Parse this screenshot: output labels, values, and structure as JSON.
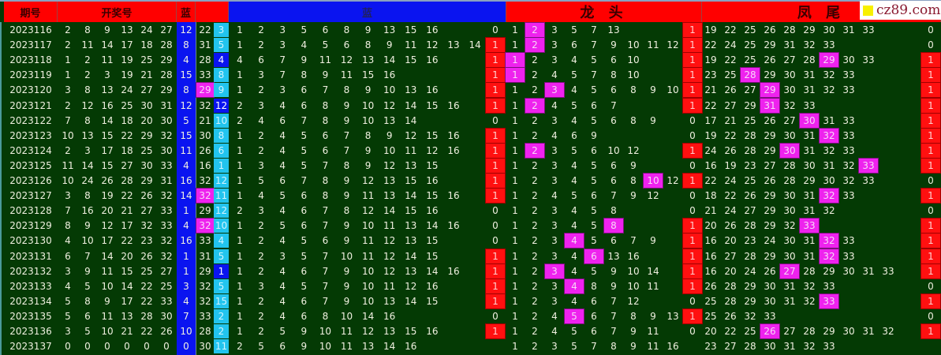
{
  "header": {
    "issue": "期号",
    "draw": "开奖号",
    "blue": "蓝",
    "blue_section": "蓝",
    "head_section": "龙 头",
    "tail_section": "凤 尾",
    "logo_text": "cz89.com"
  },
  "colors": {
    "header_red": "#ff0000",
    "blue": "#0a14f0",
    "light_blue": "#22c4ee",
    "highlight": "#ee22ee",
    "flag": "#ff1010",
    "background": "#043a04"
  },
  "rows": [
    {
      "issue": "2023116",
      "draw": [
        2,
        8,
        9,
        13,
        24,
        27
      ],
      "blue": 12,
      "c1": 22,
      "c1_hl": false,
      "c2": 3,
      "c2_style": "light",
      "blue_set": [
        1,
        2,
        3,
        5,
        6,
        8,
        9,
        13,
        15,
        16
      ],
      "blue_flag": 0,
      "head": [
        1,
        2,
        3,
        5,
        7,
        13
      ],
      "head_hl": 2,
      "head_flag": 1,
      "tail": [
        19,
        22,
        25,
        26,
        28,
        29,
        30,
        31,
        33
      ],
      "tail_hl": null,
      "tail_flag": 0
    },
    {
      "issue": "2023117",
      "draw": [
        2,
        11,
        14,
        17,
        18,
        28
      ],
      "blue": 8,
      "c1": 31,
      "c1_hl": false,
      "c2": 5,
      "c2_style": "light",
      "blue_set": [
        1,
        2,
        3,
        4,
        5,
        6,
        8,
        9,
        11,
        12,
        13,
        14
      ],
      "blue_flag": 1,
      "head": [
        1,
        2,
        3,
        6,
        7,
        9,
        10,
        11,
        12
      ],
      "head_hl": 2,
      "head_flag": 1,
      "tail": [
        22,
        24,
        25,
        29,
        31,
        32,
        33
      ],
      "tail_hl": null,
      "tail_flag": 0
    },
    {
      "issue": "2023118",
      "draw": [
        1,
        2,
        11,
        19,
        25,
        29
      ],
      "blue": 4,
      "c1": 28,
      "c1_hl": false,
      "c2": 4,
      "c2_style": "dark",
      "blue_set": [
        4,
        6,
        7,
        9,
        11,
        12,
        13,
        14,
        15,
        16
      ],
      "blue_flag": 1,
      "head": [
        1,
        2,
        3,
        4,
        5,
        6,
        10
      ],
      "head_hl": 1,
      "head_flag": 1,
      "tail": [
        19,
        22,
        25,
        26,
        27,
        28,
        29,
        30,
        33
      ],
      "tail_hl": 29,
      "tail_flag": 1
    },
    {
      "issue": "2023119",
      "draw": [
        1,
        2,
        3,
        19,
        21,
        28
      ],
      "blue": 15,
      "c1": 33,
      "c1_hl": false,
      "c2": 8,
      "c2_style": "light",
      "blue_set": [
        1,
        3,
        7,
        8,
        9,
        11,
        15,
        16
      ],
      "blue_flag": 1,
      "head": [
        1,
        2,
        4,
        5,
        7,
        8,
        10
      ],
      "head_hl": 1,
      "head_flag": 1,
      "tail": [
        23,
        25,
        28,
        29,
        30,
        31,
        32,
        33
      ],
      "tail_hl": 28,
      "tail_flag": 1
    },
    {
      "issue": "2023120",
      "draw": [
        3,
        8,
        13,
        24,
        27,
        29
      ],
      "blue": 8,
      "c1": 29,
      "c1_hl": true,
      "c2": 9,
      "c2_style": "light",
      "blue_set": [
        1,
        2,
        3,
        6,
        7,
        8,
        9,
        10,
        13,
        16
      ],
      "blue_flag": 1,
      "head": [
        1,
        2,
        3,
        4,
        5,
        6,
        8,
        9,
        10
      ],
      "head_hl": 3,
      "head_flag": 1,
      "tail": [
        21,
        26,
        27,
        29,
        30,
        31,
        32,
        33
      ],
      "tail_hl": 29,
      "tail_flag": 1
    },
    {
      "issue": "2023121",
      "draw": [
        2,
        12,
        16,
        25,
        30,
        31
      ],
      "blue": 12,
      "c1": 32,
      "c1_hl": false,
      "c2": 12,
      "c2_style": "dark",
      "blue_set": [
        2,
        3,
        4,
        6,
        8,
        9,
        10,
        12,
        14,
        15,
        16
      ],
      "blue_flag": 1,
      "head": [
        1,
        2,
        4,
        5,
        6,
        7
      ],
      "head_hl": 2,
      "head_flag": 1,
      "tail": [
        22,
        27,
        29,
        31,
        32,
        33
      ],
      "tail_hl": 31,
      "tail_flag": 1
    },
    {
      "issue": "2023122",
      "draw": [
        7,
        8,
        14,
        18,
        20,
        30
      ],
      "blue": 5,
      "c1": 21,
      "c1_hl": false,
      "c2": 10,
      "c2_style": "light",
      "blue_set": [
        2,
        4,
        6,
        7,
        8,
        9,
        10,
        13,
        14
      ],
      "blue_flag": 0,
      "head": [
        1,
        2,
        3,
        4,
        5,
        6,
        8,
        9
      ],
      "head_hl": null,
      "head_flag": 0,
      "tail": [
        17,
        21,
        25,
        26,
        27,
        30,
        31,
        33
      ],
      "tail_hl": 30,
      "tail_flag": 1
    },
    {
      "issue": "2023123",
      "draw": [
        10,
        13,
        15,
        22,
        29,
        32
      ],
      "blue": 15,
      "c1": 30,
      "c1_hl": false,
      "c2": 8,
      "c2_style": "light",
      "blue_set": [
        1,
        2,
        4,
        5,
        6,
        7,
        8,
        9,
        12,
        15,
        16
      ],
      "blue_flag": 1,
      "head": [
        1,
        2,
        4,
        6,
        9
      ],
      "head_hl": null,
      "head_flag": 0,
      "tail": [
        19,
        22,
        28,
        29,
        30,
        31,
        32,
        33
      ],
      "tail_hl": 32,
      "tail_flag": 1
    },
    {
      "issue": "2023124",
      "draw": [
        2,
        3,
        17,
        18,
        25,
        30
      ],
      "blue": 11,
      "c1": 26,
      "c1_hl": false,
      "c2": 6,
      "c2_style": "light",
      "blue_set": [
        1,
        2,
        4,
        5,
        6,
        7,
        9,
        10,
        11,
        12,
        16
      ],
      "blue_flag": 1,
      "head": [
        1,
        2,
        3,
        5,
        6,
        10,
        12
      ],
      "head_hl": 2,
      "head_flag": 1,
      "tail": [
        24,
        26,
        28,
        29,
        30,
        31,
        32,
        33
      ],
      "tail_hl": 30,
      "tail_flag": 1
    },
    {
      "issue": "2023125",
      "draw": [
        11,
        14,
        15,
        27,
        30,
        33
      ],
      "blue": 4,
      "c1": 16,
      "c1_hl": false,
      "c2": 1,
      "c2_style": "light",
      "blue_set": [
        1,
        3,
        4,
        5,
        7,
        8,
        9,
        12,
        13,
        15
      ],
      "blue_flag": 1,
      "head": [
        1,
        2,
        3,
        4,
        5,
        6,
        9
      ],
      "head_hl": null,
      "head_flag": 0,
      "tail": [
        16,
        19,
        23,
        27,
        28,
        30,
        31,
        32,
        33
      ],
      "tail_hl": 33,
      "tail_flag": 1
    },
    {
      "issue": "2023126",
      "draw": [
        10,
        24,
        26,
        28,
        29,
        31
      ],
      "blue": 16,
      "c1": 32,
      "c1_hl": false,
      "c2": 12,
      "c2_style": "light",
      "blue_set": [
        1,
        5,
        6,
        7,
        8,
        9,
        12,
        13,
        15,
        16
      ],
      "blue_flag": 1,
      "head": [
        1,
        2,
        3,
        4,
        5,
        6,
        8,
        10,
        12
      ],
      "head_hl": 10,
      "head_flag": 1,
      "tail": [
        22,
        24,
        25,
        26,
        28,
        29,
        30,
        32,
        33
      ],
      "tail_hl": null,
      "tail_flag": 0
    },
    {
      "issue": "2023127",
      "draw": [
        3,
        8,
        19,
        22,
        26,
        32
      ],
      "blue": 14,
      "c1": 32,
      "c1_hl": true,
      "c2": 11,
      "c2_style": "light",
      "blue_set": [
        1,
        4,
        5,
        6,
        8,
        9,
        11,
        13,
        14,
        15,
        16
      ],
      "blue_flag": 1,
      "head": [
        1,
        2,
        4,
        5,
        6,
        7,
        9,
        12
      ],
      "head_hl": null,
      "head_flag": 0,
      "tail": [
        18,
        22,
        26,
        29,
        30,
        31,
        32,
        33
      ],
      "tail_hl": 32,
      "tail_flag": 1
    },
    {
      "issue": "2023128",
      "draw": [
        7,
        16,
        20,
        21,
        27,
        33
      ],
      "blue": 1,
      "c1": 29,
      "c1_hl": false,
      "c2": 12,
      "c2_style": "light",
      "blue_set": [
        2,
        3,
        4,
        6,
        7,
        8,
        12,
        14,
        15,
        16
      ],
      "blue_flag": 0,
      "head": [
        1,
        2,
        3,
        4,
        5,
        8
      ],
      "head_hl": null,
      "head_flag": 0,
      "tail": [
        21,
        24,
        27,
        29,
        30,
        31,
        32
      ],
      "tail_hl": null,
      "tail_flag": 0
    },
    {
      "issue": "2023129",
      "draw": [
        8,
        9,
        12,
        17,
        32,
        33
      ],
      "blue": 4,
      "c1": 32,
      "c1_hl": true,
      "c2": 10,
      "c2_style": "light",
      "blue_set": [
        1,
        2,
        5,
        6,
        7,
        9,
        10,
        11,
        13,
        14,
        16
      ],
      "blue_flag": 0,
      "head": [
        1,
        2,
        3,
        4,
        5,
        8
      ],
      "head_hl": 8,
      "head_flag": 1,
      "tail": [
        20,
        26,
        28,
        29,
        32,
        33
      ],
      "tail_hl": 33,
      "tail_flag": 1
    },
    {
      "issue": "2023130",
      "draw": [
        4,
        10,
        17,
        22,
        23,
        32
      ],
      "blue": 16,
      "c1": 33,
      "c1_hl": false,
      "c2": 4,
      "c2_style": "light",
      "blue_set": [
        1,
        2,
        4,
        5,
        6,
        9,
        11,
        12,
        13,
        15
      ],
      "blue_flag": 0,
      "head": [
        1,
        2,
        3,
        4,
        5,
        6,
        7,
        9
      ],
      "head_hl": 4,
      "head_flag": 1,
      "tail": [
        16,
        20,
        23,
        24,
        30,
        31,
        32,
        33
      ],
      "tail_hl": 32,
      "tail_flag": 1
    },
    {
      "issue": "2023131",
      "draw": [
        6,
        7,
        14,
        20,
        26,
        32
      ],
      "blue": 1,
      "c1": 31,
      "c1_hl": false,
      "c2": 5,
      "c2_style": "light",
      "blue_set": [
        1,
        2,
        3,
        5,
        7,
        10,
        11,
        12,
        14,
        15
      ],
      "blue_flag": 1,
      "head": [
        1,
        2,
        3,
        4,
        6,
        13,
        16
      ],
      "head_hl": 6,
      "head_flag": 1,
      "tail": [
        16,
        27,
        28,
        29,
        30,
        31,
        32,
        33
      ],
      "tail_hl": 32,
      "tail_flag": 1
    },
    {
      "issue": "2023132",
      "draw": [
        3,
        9,
        11,
        15,
        25,
        27
      ],
      "blue": 1,
      "c1": 29,
      "c1_hl": false,
      "c2": 1,
      "c2_style": "dark",
      "blue_set": [
        1,
        2,
        4,
        6,
        7,
        9,
        10,
        12,
        13,
        14,
        16
      ],
      "blue_flag": 1,
      "head": [
        1,
        2,
        3,
        4,
        5,
        9,
        10,
        14
      ],
      "head_hl": 3,
      "head_flag": 1,
      "tail": [
        16,
        20,
        24,
        26,
        27,
        28,
        29,
        30,
        31,
        33
      ],
      "tail_hl": 27,
      "tail_flag": 1
    },
    {
      "issue": "2023133",
      "draw": [
        4,
        5,
        10,
        14,
        22,
        25
      ],
      "blue": 3,
      "c1": 32,
      "c1_hl": false,
      "c2": 5,
      "c2_style": "light",
      "blue_set": [
        1,
        3,
        4,
        5,
        7,
        9,
        10,
        11,
        12,
        16
      ],
      "blue_flag": 1,
      "head": [
        1,
        2,
        3,
        4,
        8,
        9,
        10,
        11
      ],
      "head_hl": 4,
      "head_flag": 1,
      "tail": [
        26,
        28,
        29,
        30,
        31,
        32,
        33
      ],
      "tail_hl": null,
      "tail_flag": 0
    },
    {
      "issue": "2023134",
      "draw": [
        5,
        8,
        9,
        17,
        22,
        33
      ],
      "blue": 4,
      "c1": 32,
      "c1_hl": false,
      "c2": 15,
      "c2_style": "light",
      "blue_set": [
        1,
        2,
        4,
        6,
        7,
        9,
        10,
        13,
        14,
        15
      ],
      "blue_flag": 1,
      "head": [
        1,
        2,
        3,
        4,
        6,
        7,
        12
      ],
      "head_hl": null,
      "head_flag": 0,
      "tail": [
        25,
        28,
        29,
        30,
        31,
        32,
        33
      ],
      "tail_hl": 33,
      "tail_flag": 1
    },
    {
      "issue": "2023135",
      "draw": [
        5,
        6,
        11,
        13,
        28,
        30
      ],
      "blue": 7,
      "c1": 33,
      "c1_hl": false,
      "c2": 2,
      "c2_style": "light",
      "blue_set": [
        1,
        2,
        4,
        6,
        8,
        10,
        14,
        16
      ],
      "blue_flag": 0,
      "head": [
        1,
        2,
        4,
        5,
        6,
        7,
        8,
        9,
        13
      ],
      "head_hl": 5,
      "head_flag": 1,
      "tail": [
        25,
        26,
        32,
        33
      ],
      "tail_hl": null,
      "tail_flag": 0
    },
    {
      "issue": "2023136",
      "draw": [
        3,
        5,
        10,
        21,
        22,
        26
      ],
      "blue": 10,
      "c1": 28,
      "c1_hl": false,
      "c2": 2,
      "c2_style": "light",
      "blue_set": [
        1,
        2,
        5,
        9,
        10,
        11,
        12,
        13,
        15,
        16
      ],
      "blue_flag": 1,
      "head": [
        1,
        2,
        4,
        5,
        6,
        7,
        9,
        11
      ],
      "head_hl": null,
      "head_flag": 0,
      "tail": [
        20,
        22,
        25,
        26,
        27,
        28,
        29,
        30,
        31,
        32
      ],
      "tail_hl": 26,
      "tail_flag": 1
    },
    {
      "issue": "2023137",
      "draw": [
        0,
        0,
        0,
        0,
        0,
        0
      ],
      "blue": 0,
      "c1": 30,
      "c1_hl": false,
      "c2": 11,
      "c2_style": "light",
      "blue_set": [
        2,
        5,
        6,
        9,
        10,
        11,
        13,
        14,
        16
      ],
      "blue_flag": null,
      "head": [
        1,
        2,
        3,
        5,
        7,
        8,
        9,
        11,
        16
      ],
      "head_hl": null,
      "head_flag": null,
      "tail": [
        23,
        27,
        28,
        30,
        31,
        32,
        33
      ],
      "tail_hl": null,
      "tail_flag": null
    }
  ]
}
